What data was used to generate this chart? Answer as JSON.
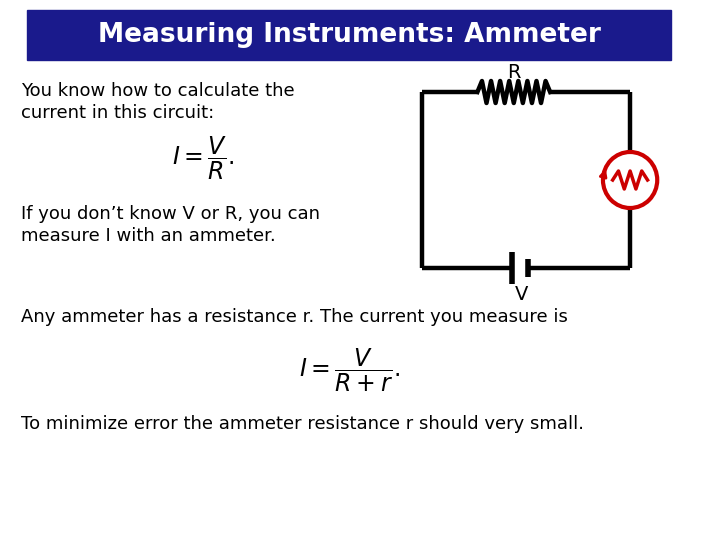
{
  "title": "Measuring Instruments: Ammeter",
  "title_bg": "#1a1a8c",
  "title_color": "#ffffff",
  "bg_color": "#ffffff",
  "text_color": "#000000",
  "line1": "You know how to calculate the",
  "line2": "current in this circuit:",
  "line3": "If you don’t know V or R, you can",
  "line4": "measure I with an ammeter.",
  "line5": "Any ammeter has a resistance r. The current you measure is",
  "line6": "To minimize error the ammeter resistance r should very small.",
  "circuit_color": "#000000",
  "ammeter_color": "#cc0000",
  "fig_width": 7.2,
  "fig_height": 5.4,
  "dpi": 100
}
